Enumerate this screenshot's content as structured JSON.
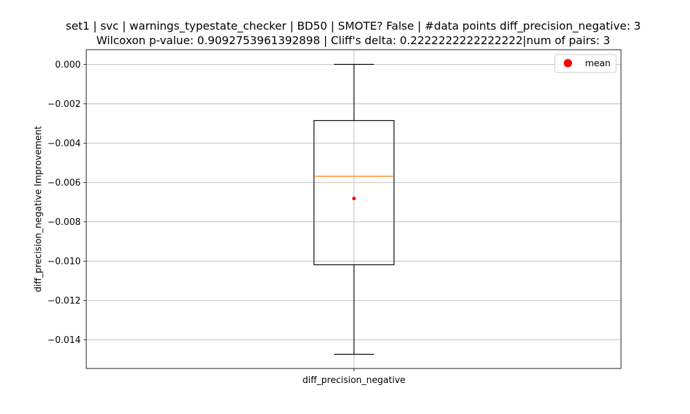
{
  "chart_data": {
    "type": "box",
    "title_line1": "set1 | svc | warnings_typestate_checker | BD50 | SMOTE? False | #data points diff_precision_negative: 3",
    "title_line2": "Wilcoxon p-value: 0.9092753961392898 | Cliff's delta: 0.2222222222222222|num of pairs: 3",
    "xlabel": "",
    "ylabel": "diff_precision_negative Improvement",
    "categories": [
      "diff_precision_negative"
    ],
    "ylim": [
      -0.01545,
      0.00075
    ],
    "yticks": [
      0.0,
      -0.002,
      -0.004,
      -0.006,
      -0.008,
      -0.01,
      -0.012,
      -0.014
    ],
    "ytick_labels": [
      "0.000",
      "−0.002",
      "−0.004",
      "−0.006",
      "−0.008",
      "−0.010",
      "−0.012",
      "−0.014"
    ],
    "grid": true,
    "box": {
      "whisker_high": 0.0,
      "q3": -0.00285,
      "median": -0.00568,
      "q1": -0.01018,
      "whisker_low": -0.01473,
      "mean": -0.00681
    },
    "legend": {
      "position": "top-right",
      "entries": [
        "mean"
      ]
    },
    "colors": {
      "box": "#000000",
      "median": "#ff7f0e",
      "mean": "#ff0000",
      "grid": "#b0b0b0"
    }
  }
}
